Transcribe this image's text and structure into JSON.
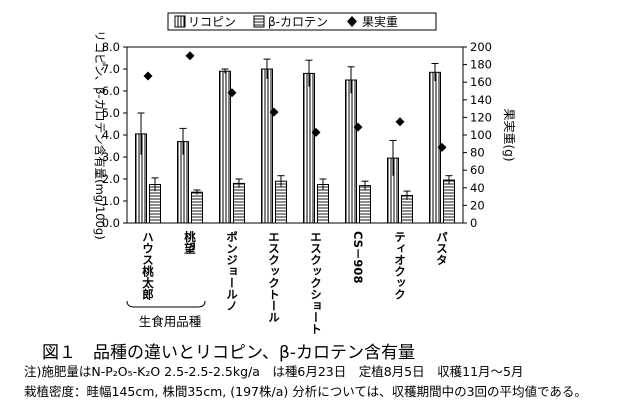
{
  "chart_data": {
    "type": "bar",
    "title": "",
    "categories": [
      "ハウス桃太郎",
      "桃望",
      "ポンジョールノ",
      "エスクックトール",
      "エスクックショート",
      "CS－908",
      "ティオクック",
      "パスタ"
    ],
    "group_label": "生食用品種",
    "group_categories": [
      "ハウス桃太郎",
      "桃望"
    ],
    "series": [
      {
        "name": "リコピン",
        "kind": "bar",
        "axis": "left",
        "pattern": "vertical-hatch",
        "values": [
          4.05,
          3.7,
          6.9,
          7.0,
          6.8,
          6.5,
          2.95,
          6.85
        ],
        "errors": [
          0.95,
          0.6,
          0.1,
          0.45,
          0.6,
          0.6,
          0.8,
          0.4
        ]
      },
      {
        "name": "β-カロテン",
        "kind": "bar",
        "axis": "left",
        "pattern": "horizontal-hatch",
        "values": [
          1.75,
          1.4,
          1.8,
          1.9,
          1.75,
          1.7,
          1.25,
          1.95
        ],
        "errors": [
          0.3,
          0.1,
          0.2,
          0.25,
          0.25,
          0.2,
          0.2,
          0.2
        ]
      },
      {
        "name": "果実重",
        "kind": "marker",
        "axis": "right",
        "marker": "diamond",
        "values": [
          167,
          190,
          148,
          126,
          103,
          109,
          115,
          86
        ]
      }
    ],
    "ylabel": "リコピン、β-カロテン含有量(mg/100g)",
    "ylim": [
      0,
      8
    ],
    "yticks": [
      "0.0",
      "1.0",
      "2.0",
      "3.0",
      "4.0",
      "5.0",
      "6.0",
      "7.0",
      "8.0"
    ],
    "y2label": "果実重(g)",
    "y2lim": [
      0,
      200
    ],
    "y2ticks": [
      "0",
      "20",
      "40",
      "60",
      "80",
      "100",
      "120",
      "140",
      "160",
      "180",
      "200"
    ],
    "legend_position": "top",
    "grid": false
  },
  "caption": {
    "title": "図１　品種の違いとリコピン、β-カロテン含有量",
    "note1": "注)施肥量はN-P₂O₅-K₂O 2.5-2.5-2.5kg/a　は種6月23日　定植8月5日　収穫11月～5月",
    "note2": "栽植密度：畦幅145cm, 株間35cm, (197株/a)  分析については、収穫期間中の3回の平均値である。"
  }
}
